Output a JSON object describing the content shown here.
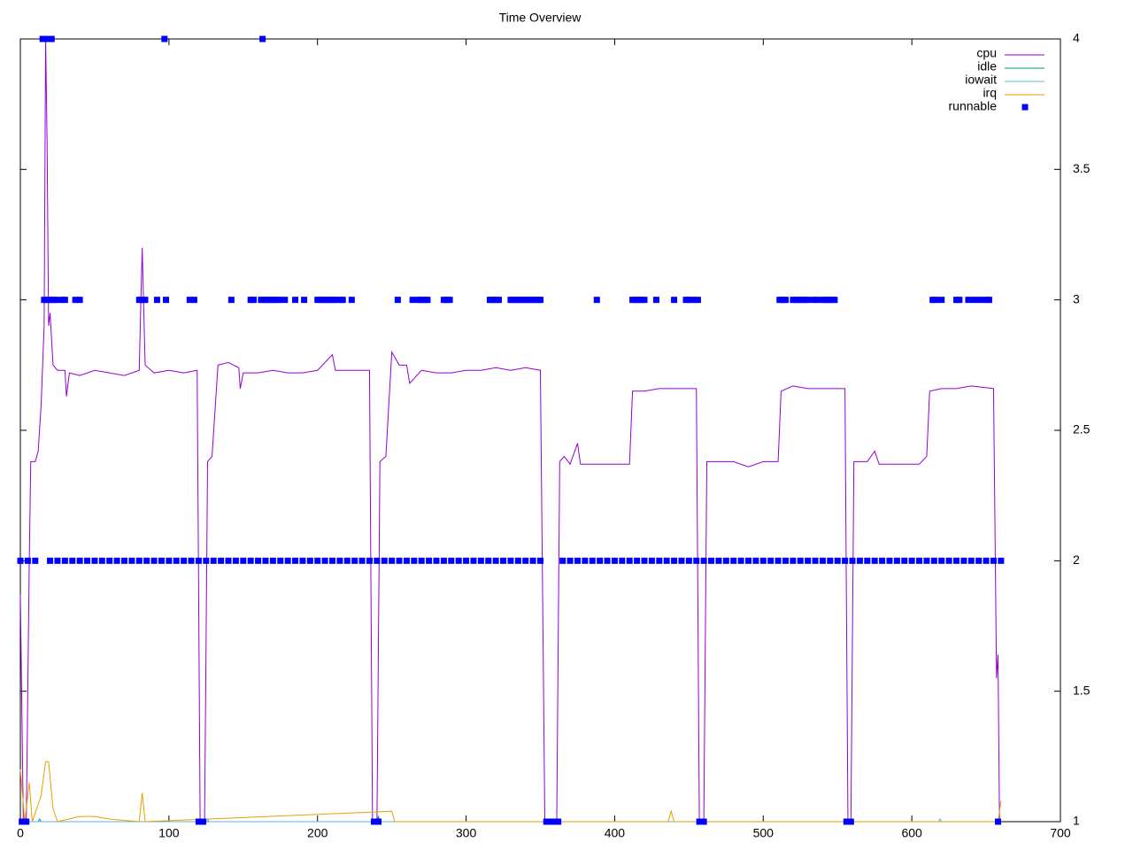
{
  "chart_data": {
    "type": "line",
    "title": "Time Overview",
    "xlim": [
      0,
      700
    ],
    "xticks": [
      0,
      100,
      200,
      300,
      400,
      500,
      600,
      700
    ],
    "ylim": [
      1,
      4
    ],
    "yticks": [
      1,
      1.5,
      2,
      2.5,
      3,
      3.5,
      4
    ],
    "y_axis_side": "right",
    "legend": "top-right",
    "series": [
      {
        "name": "cpu",
        "color": "#9400d3",
        "style": "line",
        "x": [
          0,
          2,
          4,
          6,
          7,
          10,
          12,
          14,
          16,
          17,
          18,
          19,
          20,
          22,
          25,
          30,
          31,
          33,
          40,
          50,
          60,
          70,
          80,
          82,
          84,
          90,
          100,
          110,
          119,
          121,
          124,
          126,
          129,
          133,
          140,
          147,
          148,
          150,
          160,
          170,
          180,
          190,
          200,
          210,
          212,
          220,
          235,
          237,
          240,
          242,
          246,
          250,
          255,
          260,
          262,
          270,
          280,
          290,
          300,
          310,
          320,
          330,
          340,
          350,
          353,
          361,
          363,
          366,
          370,
          375,
          377,
          390,
          400,
          410,
          412,
          420,
          430,
          440,
          455,
          457,
          460,
          462,
          470,
          480,
          490,
          500,
          510,
          512,
          520,
          530,
          540,
          555,
          557,
          559,
          561,
          570,
          575,
          578,
          590,
          605,
          610,
          612,
          620,
          630,
          640,
          655,
          657,
          658,
          659
        ],
        "values": [
          1.87,
          1.0,
          1.0,
          2.0,
          2.38,
          2.38,
          2.42,
          2.6,
          2.9,
          4.0,
          3.6,
          2.9,
          2.95,
          2.75,
          2.73,
          2.73,
          2.63,
          2.72,
          2.71,
          2.73,
          2.72,
          2.71,
          2.73,
          3.2,
          2.75,
          2.72,
          2.73,
          2.72,
          2.73,
          1.0,
          1.0,
          2.38,
          2.4,
          2.75,
          2.76,
          2.74,
          2.66,
          2.72,
          2.72,
          2.73,
          2.72,
          2.72,
          2.73,
          2.79,
          2.73,
          2.73,
          2.73,
          1.0,
          1.0,
          2.38,
          2.4,
          2.8,
          2.75,
          2.75,
          2.68,
          2.73,
          2.72,
          2.72,
          2.73,
          2.73,
          2.74,
          2.73,
          2.74,
          2.73,
          1.0,
          1.0,
          2.38,
          2.4,
          2.37,
          2.45,
          2.37,
          2.37,
          2.37,
          2.37,
          2.65,
          2.65,
          2.66,
          2.66,
          2.66,
          1.0,
          1.0,
          2.38,
          2.38,
          2.38,
          2.36,
          2.38,
          2.38,
          2.65,
          2.67,
          2.66,
          2.66,
          2.66,
          1.0,
          1.0,
          2.38,
          2.38,
          2.42,
          2.37,
          2.37,
          2.37,
          2.4,
          2.65,
          2.66,
          2.66,
          2.67,
          2.66,
          1.55,
          1.64,
          1.0
        ]
      },
      {
        "name": "idle",
        "color": "#009e73",
        "style": "line",
        "x": [
          0,
          12,
          13,
          14,
          240,
          241,
          242,
          660
        ],
        "values": [
          1,
          1,
          1.01,
          1,
          1,
          1.02,
          1,
          1
        ]
      },
      {
        "name": "iowait",
        "color": "#56b4e9",
        "style": "line",
        "x": [
          0,
          125,
          126,
          127,
          618,
          619,
          620,
          660
        ],
        "values": [
          1,
          1,
          1.01,
          1,
          1,
          1.01,
          1,
          1
        ]
      },
      {
        "name": "irq",
        "color": "#e69f00",
        "style": "line",
        "x": [
          0,
          3,
          6,
          8,
          14,
          17,
          19,
          22,
          25,
          40,
          50,
          60,
          80,
          82,
          84,
          250,
          252,
          436,
          438,
          440,
          658,
          660
        ],
        "values": [
          1.2,
          1.0,
          1.15,
          1.0,
          1.1,
          1.23,
          1.23,
          1.05,
          1.0,
          1.02,
          1.02,
          1.01,
          1.0,
          1.11,
          1.0,
          1.04,
          1.0,
          1.0,
          1.04,
          1.0,
          1.0,
          1.08
        ]
      },
      {
        "name": "runnable",
        "color": "#0000ff",
        "style": "points",
        "x": [
          1,
          4,
          120,
          123,
          238,
          241,
          354,
          357,
          360,
          362,
          457,
          460,
          556,
          559,
          658,
          15,
          17,
          19,
          21,
          97,
          163,
          16,
          18,
          20,
          22,
          24,
          28,
          30,
          37,
          40,
          80,
          82,
          84,
          92,
          98,
          114,
          117,
          142,
          155,
          157,
          162,
          164,
          166,
          168,
          170,
          172,
          174,
          178,
          185,
          191,
          200,
          202,
          204,
          206,
          208,
          210,
          212,
          215,
          217,
          223,
          254,
          264,
          268,
          270,
          272,
          274,
          285,
          287,
          289,
          316,
          318,
          320,
          322,
          330,
          332,
          334,
          336,
          338,
          340,
          342,
          344,
          346,
          348,
          350,
          388,
          412,
          414,
          416,
          418,
          420,
          428,
          440,
          448,
          450,
          453,
          456,
          511,
          513,
          515,
          520,
          522,
          524,
          526,
          528,
          530,
          534,
          536,
          540,
          542,
          544,
          546,
          548,
          614,
          616,
          620,
          630,
          632,
          638,
          642,
          646,
          650,
          652,
          0,
          5,
          10,
          20,
          25,
          30,
          35,
          40,
          45,
          50,
          55,
          60,
          65,
          70,
          75,
          80,
          85,
          90,
          95,
          100,
          105,
          110,
          115,
          120,
          125,
          130,
          135,
          140,
          145,
          150,
          155,
          160,
          165,
          170,
          175,
          180,
          185,
          190,
          195,
          200,
          205,
          210,
          215,
          220,
          225,
          230,
          235,
          240,
          245,
          250,
          255,
          260,
          265,
          270,
          275,
          280,
          285,
          290,
          295,
          300,
          305,
          310,
          315,
          320,
          325,
          330,
          335,
          340,
          345,
          350,
          365,
          370,
          375,
          380,
          385,
          390,
          395,
          400,
          405,
          410,
          415,
          420,
          425,
          430,
          435,
          440,
          445,
          450,
          455,
          460,
          465,
          470,
          475,
          480,
          485,
          490,
          495,
          500,
          505,
          510,
          515,
          520,
          525,
          530,
          535,
          540,
          545,
          550,
          555,
          560,
          565,
          570,
          575,
          580,
          585,
          590,
          595,
          600,
          605,
          610,
          615,
          620,
          625,
          630,
          635,
          640,
          645,
          650,
          655,
          660
        ],
        "values": [
          1,
          1,
          1,
          1,
          1,
          1,
          1,
          1,
          1,
          1,
          1,
          1,
          1,
          1,
          1,
          4,
          4,
          4,
          4,
          4,
          4,
          3,
          3,
          3,
          3,
          3,
          3,
          3,
          3,
          3,
          3,
          3,
          3,
          3,
          3,
          3,
          3,
          3,
          3,
          3,
          3,
          3,
          3,
          3,
          3,
          3,
          3,
          3,
          3,
          3,
          3,
          3,
          3,
          3,
          3,
          3,
          3,
          3,
          3,
          3,
          3,
          3,
          3,
          3,
          3,
          3,
          3,
          3,
          3,
          3,
          3,
          3,
          3,
          3,
          3,
          3,
          3,
          3,
          3,
          3,
          3,
          3,
          3,
          3,
          3,
          3,
          3,
          3,
          3,
          3,
          3,
          3,
          3,
          3,
          3,
          3,
          3,
          3,
          3,
          3,
          3,
          3,
          3,
          3,
          3,
          3,
          3,
          3,
          3,
          3,
          3,
          3,
          3,
          3,
          3,
          3,
          3,
          3,
          3,
          3,
          3,
          3,
          2,
          2,
          2,
          2,
          2,
          2,
          2,
          2,
          2,
          2,
          2,
          2,
          2,
          2,
          2,
          2,
          2,
          2,
          2,
          2,
          2,
          2,
          2,
          2,
          2,
          2,
          2,
          2,
          2,
          2,
          2,
          2,
          2,
          2,
          2,
          2,
          2,
          2,
          2,
          2,
          2,
          2,
          2,
          2,
          2,
          2,
          2,
          2,
          2,
          2,
          2,
          2,
          2,
          2,
          2,
          2,
          2,
          2,
          2,
          2,
          2,
          2,
          2,
          2,
          2,
          2,
          2,
          2,
          2,
          2,
          2,
          2,
          2,
          2,
          2,
          2,
          2,
          2,
          2,
          2,
          2,
          2,
          2,
          2,
          2,
          2,
          2,
          2,
          2,
          2,
          2,
          2,
          2,
          2,
          2,
          2,
          2,
          2,
          2,
          2,
          2,
          2,
          2,
          2,
          2,
          2,
          2,
          2,
          2,
          2,
          2,
          2,
          2,
          2,
          2,
          2,
          2,
          2,
          2,
          2,
          2,
          2,
          2,
          2,
          2,
          2,
          2,
          2,
          2,
          2
        ]
      }
    ]
  }
}
